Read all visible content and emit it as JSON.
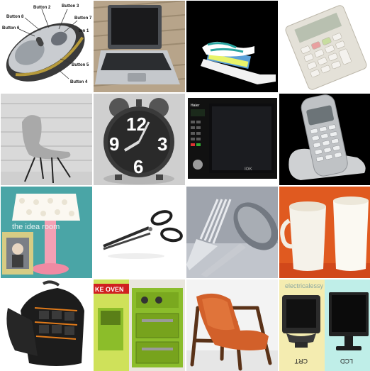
{
  "mouse": {
    "button2": "Button 2",
    "button3": "Button 3",
    "button8": "Button 8",
    "button7": "Button 7",
    "button6": "Button 6",
    "button1": "ton 1",
    "button5": "Button 5",
    "button4": "Button 4"
  },
  "clock": {
    "n12": "12",
    "n3": "3",
    "n9": "9",
    "n6": "6"
  },
  "microwave": {
    "brand": "Haier",
    "model": "IOK"
  },
  "lamp": {
    "caption": "the idea room"
  },
  "toy_oven": {
    "title": "KE OVEN"
  },
  "monitors": {
    "site": "electricalessy",
    "crt": "CRT",
    "lcd": "LCD"
  },
  "colors": {
    "chair_orange": "#d2602a",
    "lamp_pink": "#f3a0b4",
    "toy_green": "#8bbd2b",
    "monitor_bg_left": "#f4ecb0",
    "monitor_bg_right": "#bfeee8"
  }
}
